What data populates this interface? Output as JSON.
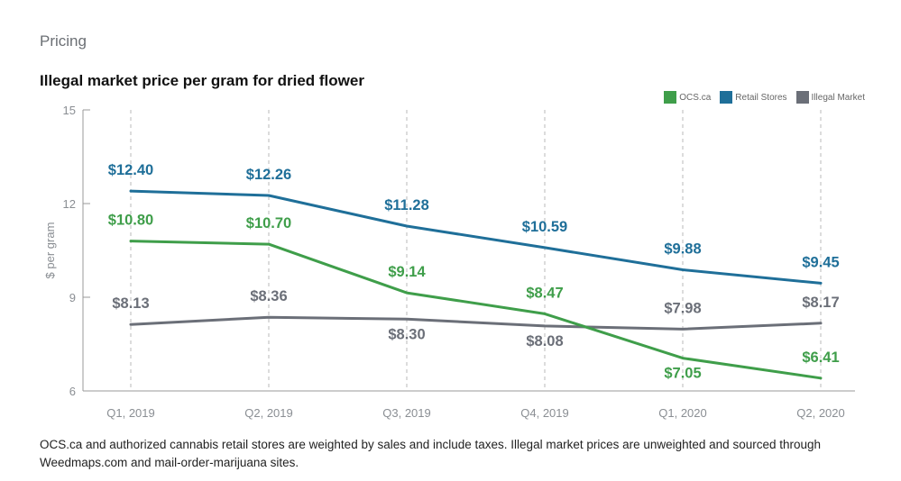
{
  "header": {
    "section": "Pricing"
  },
  "footnote": "OCS.ca and authorized cannabis retail stores are weighted by sales and include taxes. Illegal market prices are unweighted and sourced through Weedmaps.com and mail-order-marijuana sites.",
  "chart_data": {
    "type": "line",
    "title": "Illegal market price per gram for dried flower",
    "xlabel": "",
    "ylabel": "$ per gram",
    "categories": [
      "Q1, 2019",
      "Q2, 2019",
      "Q3, 2019",
      "Q4, 2019",
      "Q1, 2020",
      "Q2, 2020"
    ],
    "ylim": [
      6,
      15
    ],
    "yticks": [
      6,
      9,
      12,
      15
    ],
    "grid": "vertical dashed",
    "legend_position": "top-right",
    "series": [
      {
        "name": "OCS.ca",
        "color": "#3f9e4a",
        "values": [
          10.8,
          10.7,
          9.14,
          8.47,
          7.05,
          6.41
        ],
        "labels": [
          "$10.80",
          "$10.70",
          "$9.14",
          "$8.47",
          "$7.05",
          "$6.41"
        ]
      },
      {
        "name": "Retail Stores",
        "color": "#1f6f99",
        "values": [
          12.4,
          12.26,
          11.28,
          10.59,
          9.88,
          9.45
        ],
        "labels": [
          "$12.40",
          "$12.26",
          "$11.28",
          "$10.59",
          "$9.88",
          "$9.45"
        ]
      },
      {
        "name": "Illegal Market",
        "color": "#6b6f78",
        "values": [
          8.13,
          8.36,
          8.3,
          8.08,
          7.98,
          8.17
        ],
        "labels": [
          "$8.13",
          "$8.36",
          "$8.30",
          "$8.08",
          "$7.98",
          "$8.17"
        ]
      }
    ]
  }
}
